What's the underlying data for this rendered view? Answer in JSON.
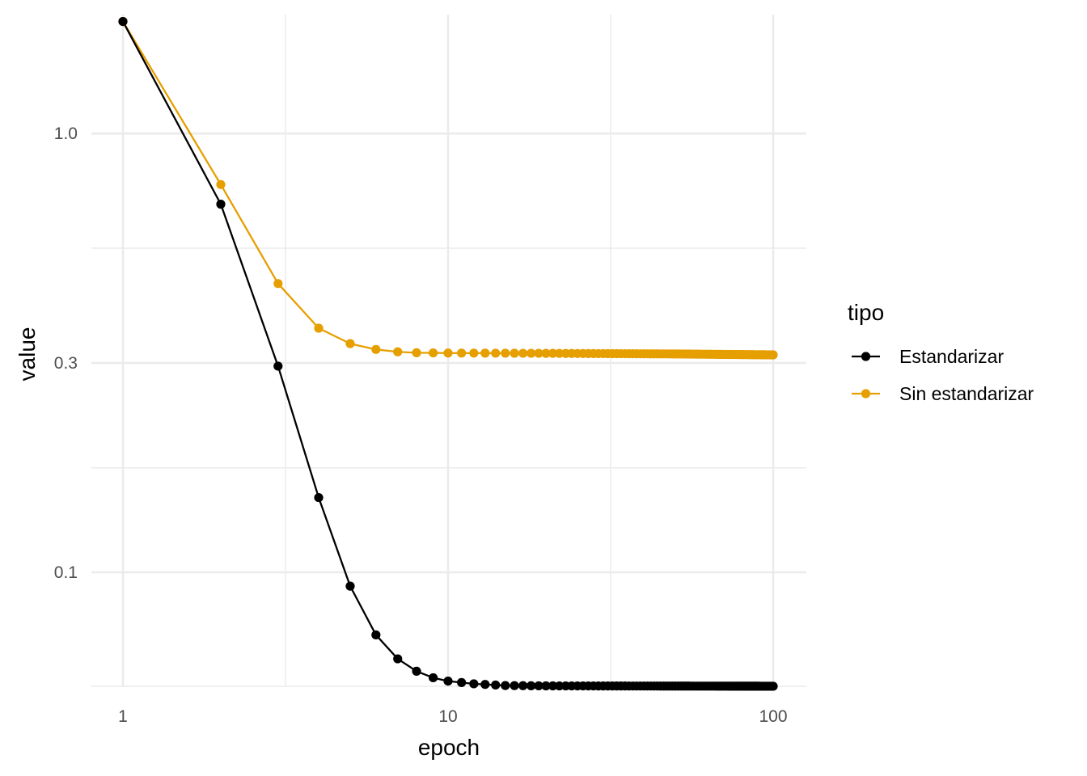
{
  "chart_data": {
    "type": "line",
    "xlabel": "epoch",
    "ylabel": "value",
    "x_scale": "log10",
    "y_scale": "log10",
    "xlim": [
      1,
      100
    ],
    "ylim": [
      0.0575,
      1.65
    ],
    "x_ticks": [
      {
        "value": 1,
        "label": "1"
      },
      {
        "value": 10,
        "label": "10"
      },
      {
        "value": 100,
        "label": "100"
      }
    ],
    "y_ticks": [
      {
        "value": 0.1,
        "label": "0.1"
      },
      {
        "value": 0.3,
        "label": "0.3"
      },
      {
        "value": 1.0,
        "label": "1.0"
      }
    ],
    "y_minor_grid": [
      0.055,
      0.173,
      0.548
    ],
    "grid": true,
    "legend": {
      "title": "tipo",
      "position": "right"
    },
    "series": [
      {
        "name": "Estandarizar",
        "color": "#000000",
        "x_range": [
          1,
          100
        ],
        "key_values": [
          {
            "x": 1,
            "y": 1.8
          },
          {
            "x": 2,
            "y": 0.69
          },
          {
            "x": 3,
            "y": 0.295
          },
          {
            "x": 4,
            "y": 0.148
          },
          {
            "x": 5,
            "y": 0.093
          },
          {
            "x": 6,
            "y": 0.072
          },
          {
            "x": 7,
            "y": 0.0635
          },
          {
            "x": 8,
            "y": 0.0595
          },
          {
            "x": 9,
            "y": 0.0575
          },
          {
            "x": 10,
            "y": 0.0565
          },
          {
            "x": 12,
            "y": 0.0557
          },
          {
            "x": 15,
            "y": 0.0552
          },
          {
            "x": 20,
            "y": 0.0551
          },
          {
            "x": 100,
            "y": 0.055
          }
        ]
      },
      {
        "name": "Sin estandarizar",
        "color": "#E69F00",
        "x_range": [
          1,
          100
        ],
        "key_values": [
          {
            "x": 1,
            "y": 1.8
          },
          {
            "x": 2,
            "y": 0.765
          },
          {
            "x": 3,
            "y": 0.455
          },
          {
            "x": 4,
            "y": 0.36
          },
          {
            "x": 5,
            "y": 0.332
          },
          {
            "x": 6,
            "y": 0.322
          },
          {
            "x": 7,
            "y": 0.318
          },
          {
            "x": 8,
            "y": 0.3165
          },
          {
            "x": 10,
            "y": 0.316
          },
          {
            "x": 20,
            "y": 0.3155
          },
          {
            "x": 50,
            "y": 0.3145
          },
          {
            "x": 100,
            "y": 0.313
          }
        ]
      }
    ]
  }
}
